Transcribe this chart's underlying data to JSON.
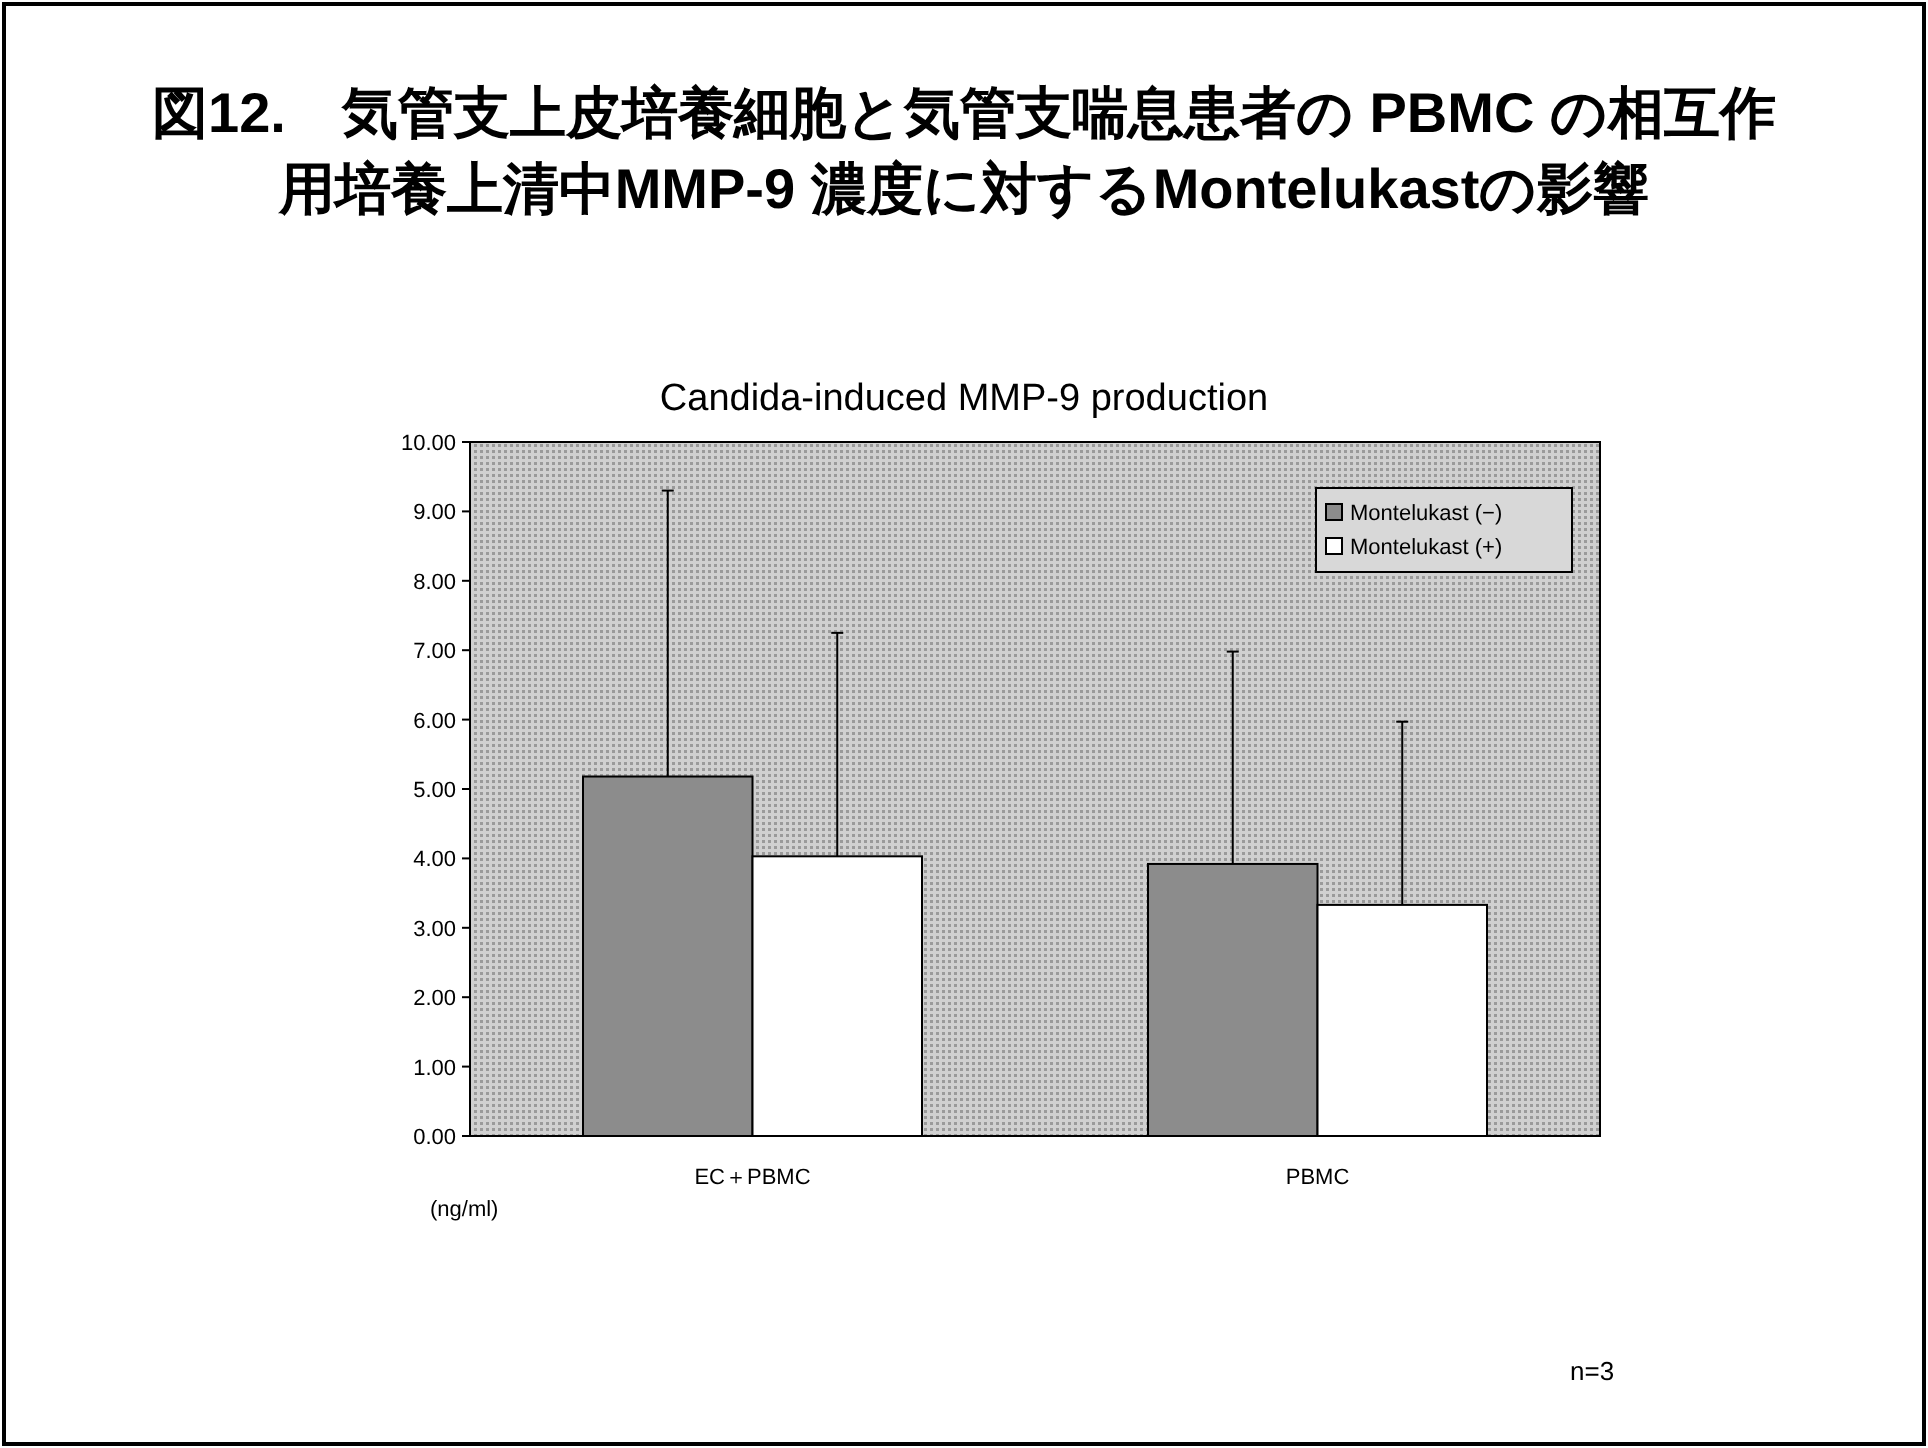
{
  "chart_data": {
    "type": "bar",
    "title": "図12.　気管支上皮培養細胞と気管支喘息患者の PBMC の相互作用培養上清中MMP-9 濃度に対するMontelukastの影響",
    "subtitle": "Candida-induced MMP-9 production",
    "ylabel": "(ng/ml)",
    "annotations": [
      "n=3"
    ],
    "categories": [
      "EC＋PBMC",
      "PBMC"
    ],
    "series": [
      {
        "name": "Montelukast (−)",
        "color": "#8c8c8c",
        "values": [
          5.18,
          3.92
        ],
        "errors": [
          [
            5.18,
            9.3
          ],
          [
            3.92,
            6.98
          ]
        ]
      },
      {
        "name": "Montelukast (+)",
        "color": "#ffffff",
        "values": [
          4.03,
          3.33
        ],
        "errors": [
          [
            4.03,
            7.25
          ],
          [
            3.33,
            5.97
          ]
        ]
      }
    ],
    "ylim": [
      0,
      10
    ],
    "yticks": [
      {
        "value": 0,
        "label": "0.00"
      },
      {
        "value": 1,
        "label": "1.00"
      },
      {
        "value": 2,
        "label": "2.00"
      },
      {
        "value": 3,
        "label": "3.00"
      },
      {
        "value": 4,
        "label": "4.00"
      },
      {
        "value": 5,
        "label": "5.00"
      },
      {
        "value": 6,
        "label": "6.00"
      },
      {
        "value": 7,
        "label": "7.00"
      },
      {
        "value": 8,
        "label": "8.00"
      },
      {
        "value": 9,
        "label": "9.00"
      },
      {
        "value": 10,
        "label": "10.00"
      }
    ],
    "legend": "top right",
    "grid": false
  }
}
